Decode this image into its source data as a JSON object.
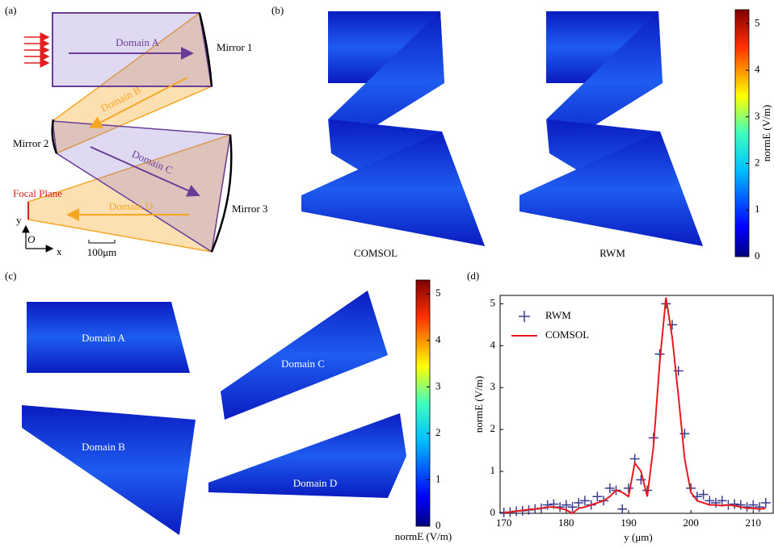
{
  "panel_labels": [
    "(a)",
    "(b)",
    "(c)",
    "(d)"
  ],
  "diagram": {
    "domains": [
      "Domain A",
      "Domain B",
      "Domain C",
      "Domain D"
    ],
    "mirrors": [
      "Mirror 1",
      "Mirror 2",
      "Mirror 3"
    ],
    "focal_plane": "Focal Plane",
    "axis_y": "y",
    "origin": "O",
    "axis_x": "x",
    "scale_bar": "100μm"
  },
  "field_maps": {
    "captions": [
      "COMSOL",
      "RWM"
    ],
    "domains": [
      "Domain A",
      "Domain C",
      "Domain B",
      "Domain D"
    ]
  },
  "colorbars": [
    {
      "label": "normE (V/m)",
      "lim": [
        0,
        5.3
      ],
      "ticks": [
        0,
        1,
        2,
        3,
        4,
        5
      ]
    },
    {
      "label": "normE (V/m)",
      "lim": [
        0,
        5.3
      ],
      "ticks": [
        0,
        1,
        2,
        3,
        4,
        5
      ]
    }
  ],
  "chart_data": {
    "type": "line",
    "xlabel": "y  (μm)",
    "ylabel": "normE (V/m)",
    "x": [
      170,
      171,
      172,
      173,
      174,
      175,
      176,
      177,
      178,
      179,
      180,
      181,
      182,
      183,
      184,
      185,
      186,
      187,
      188,
      189,
      190,
      191,
      192,
      193,
      194,
      195,
      196,
      197,
      198,
      199,
      200,
      201,
      202,
      203,
      204,
      205,
      206,
      207,
      208,
      209,
      210,
      211,
      212
    ],
    "series": [
      {
        "name": "RWM",
        "color": "#3b3d8f",
        "marker": "+",
        "values": [
          0.02,
          0.03,
          0.05,
          0.06,
          0.08,
          0.1,
          0.12,
          0.2,
          0.22,
          0.15,
          0.2,
          0.15,
          0.25,
          0.3,
          0.2,
          0.4,
          0.3,
          0.6,
          0.55,
          0.1,
          0.6,
          1.3,
          0.8,
          0.55,
          1.8,
          3.8,
          5.0,
          4.5,
          3.4,
          1.9,
          0.6,
          0.4,
          0.45,
          0.3,
          0.25,
          0.3,
          0.2,
          0.22,
          0.2,
          0.15,
          0.2,
          0.15,
          0.25
        ]
      },
      {
        "name": "COMSOL",
        "color": "#e8191e",
        "values": [
          0.02,
          0.03,
          0.05,
          0.07,
          0.09,
          0.1,
          0.12,
          0.15,
          0.15,
          0.12,
          0.08,
          0,
          0.12,
          0.15,
          0.2,
          0.25,
          0.3,
          0.4,
          0.55,
          0.5,
          0.4,
          1.2,
          1.0,
          0.4,
          1.6,
          3.6,
          5.15,
          4.2,
          2.8,
          1.3,
          0.5,
          0.3,
          0.25,
          0.2,
          0.2,
          0.18,
          0.2,
          0.18,
          0.15,
          0.12,
          0.12,
          0.1,
          0.12
        ]
      }
    ],
    "xlim": [
      169.4,
      213.2
    ],
    "ylim": [
      0,
      5.2
    ],
    "xticks": [
      170,
      180,
      190,
      200,
      210
    ],
    "yticks": [
      0,
      1,
      2,
      3,
      4,
      5
    ],
    "legend": "upper left"
  }
}
